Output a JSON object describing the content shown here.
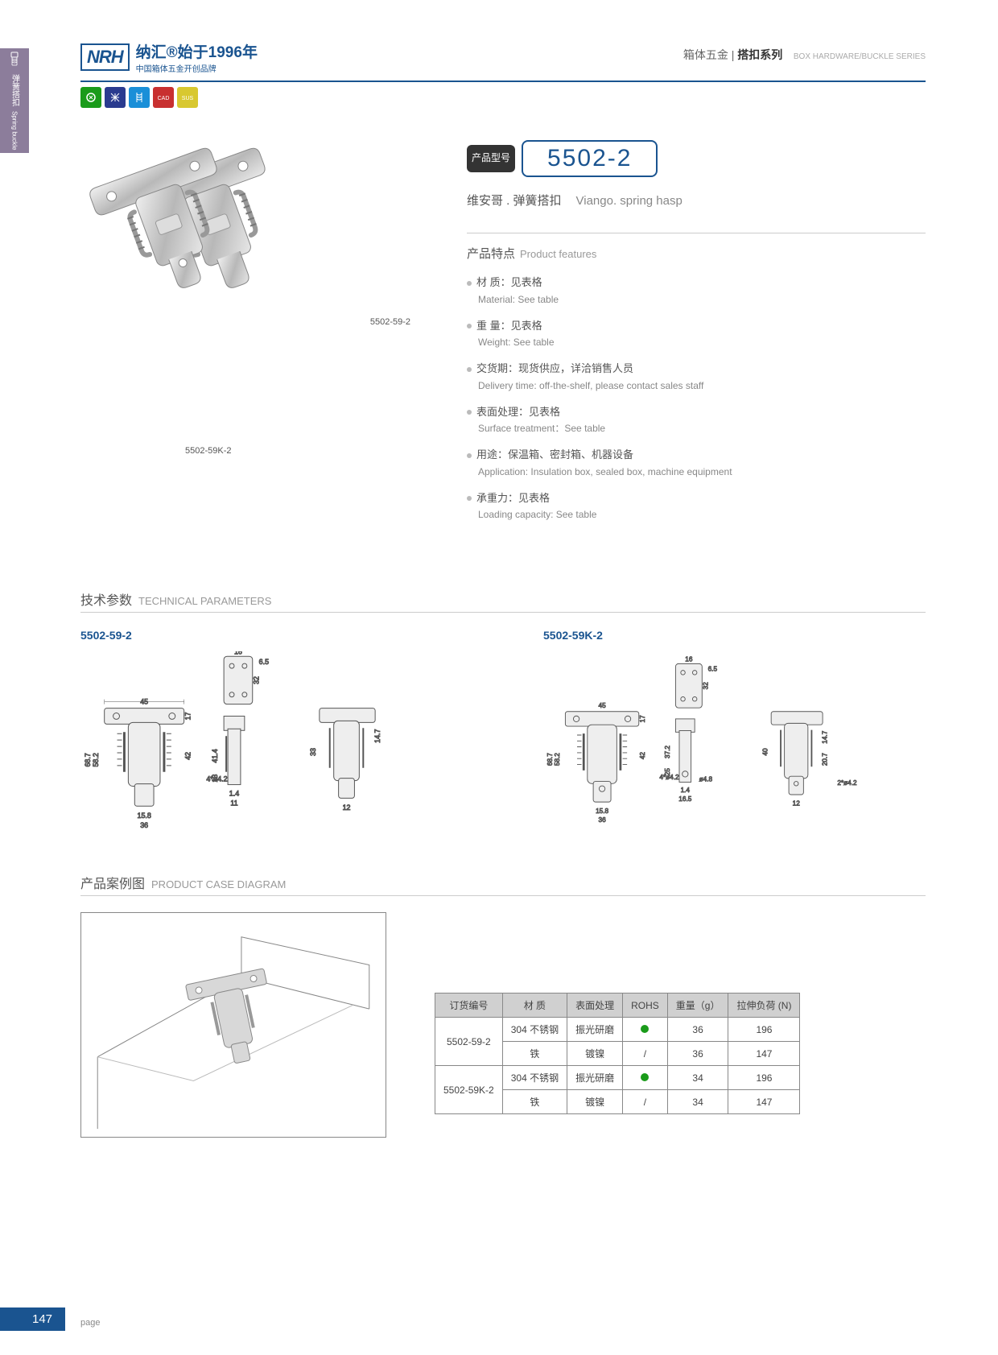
{
  "sideTab": {
    "cn": "弹簧搭扣",
    "en": "Spring buckle"
  },
  "logo": {
    "brand": "NRH",
    "cn": "纳汇®始于1996年",
    "sub": "中国箱体五金开创品牌"
  },
  "headerRight": {
    "cn1": "箱体五金",
    "cn2": "搭扣系列",
    "en": "BOX HARDWARE/BUCKLE SERIES"
  },
  "badges": [
    {
      "color": "#1a9b1a"
    },
    {
      "color": "#2a3b8f"
    },
    {
      "color": "#1a8fd8"
    },
    {
      "color": "#c83030"
    },
    {
      "color": "#d8c830"
    }
  ],
  "productImg": {
    "label1": "5502-59-2",
    "label2": "5502-59K-2"
  },
  "model": {
    "labelCn": "产品型号",
    "number": "5502-2"
  },
  "subtitle": {
    "cn": "维安哥 . 弹簧搭扣",
    "en": "Viango. spring hasp"
  },
  "featuresTitle": {
    "cn": "产品特点",
    "en": "Product features"
  },
  "features": [
    {
      "cn": "材 质：见表格",
      "en": "Material: See table"
    },
    {
      "cn": "重 量：见表格",
      "en": "Weight: See table"
    },
    {
      "cn": "交货期：现货供应，详洽销售人员",
      "en": "Delivery time: off-the-shelf, please contact sales staff"
    },
    {
      "cn": "表面处理：见表格",
      "en": "Surface treatment：See table"
    },
    {
      "cn": "用途：保温箱、密封箱、机器设备",
      "en": "Application: Insulation box, sealed box, machine equipment"
    },
    {
      "cn": "承重力：见表格",
      "en": "Loading capacity: See table"
    }
  ],
  "techTitle": {
    "cn": "技术参数",
    "en": "TECHNICAL PARAMETERS"
  },
  "drawings": [
    {
      "label": "5502-59-2",
      "dims": {
        "w1": "45",
        "w2": "16",
        "w3": "6.5",
        "h1": "68.7",
        "h2": "58.2",
        "h3": "42",
        "h4": "17",
        "h5": "32",
        "h6": "41.4",
        "h7": "13",
        "h8": "33",
        "h9": "14.7",
        "b1": "15.8",
        "b2": "36",
        "b3": "11",
        "b4": "1.4",
        "b5": "12",
        "d1": "4*ø4.2"
      }
    },
    {
      "label": "5502-59K-2",
      "dims": {
        "w1": "45",
        "w2": "16",
        "w3": "6.5",
        "h1": "68.7",
        "h2": "58.2",
        "h3": "42",
        "h4": "17",
        "h5": "32",
        "h6": "37.2",
        "h7": "25",
        "h8": "40",
        "h9": "14.7",
        "h10": "20.7",
        "b1": "15.8",
        "b2": "36",
        "b3": "16.5",
        "b4": "1.4",
        "b5": "12",
        "d1": "4*ø4.2",
        "d2": "ø4.8",
        "d3": "2*ø4.2"
      }
    }
  ],
  "caseTitle": {
    "cn": "产品案例图",
    "en": "PRODUCT CASE DIAGRAM"
  },
  "table": {
    "headers": [
      "订货编号",
      "材 质",
      "表面处理",
      "ROHS",
      "重量（g）",
      "拉伸负荷 (N)"
    ],
    "rows": [
      [
        "5502-59-2",
        "304 不锈钢",
        "振光研磨",
        "●",
        "36",
        "196"
      ],
      [
        "",
        "铁",
        "镀镍",
        "/",
        "36",
        "147"
      ],
      [
        "5502-59K-2",
        "304 不锈钢",
        "振光研磨",
        "●",
        "34",
        "196"
      ],
      [
        "",
        "铁",
        "镀镍",
        "/",
        "34",
        "147"
      ]
    ]
  },
  "pageNum": "147",
  "pageLabel": "page"
}
